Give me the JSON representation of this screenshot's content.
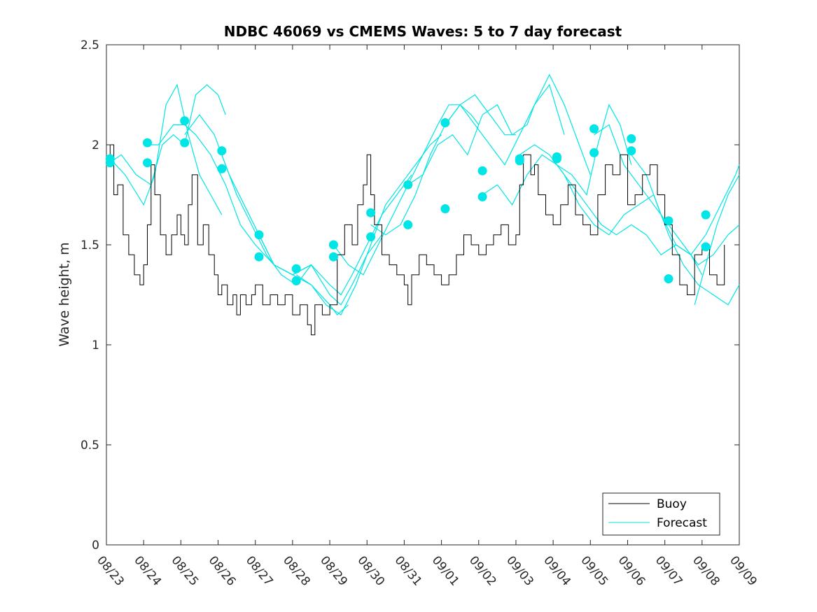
{
  "chart_data": {
    "type": "line",
    "title": "NDBC 46069 vs CMEMS Waves: 5 to 7 day forecast",
    "xlabel": "",
    "ylabel": "Wave height, m",
    "xlim": [
      0,
      17
    ],
    "ylim": [
      0,
      2.5
    ],
    "yticks": [
      0,
      0.5,
      1,
      1.5,
      2,
      2.5
    ],
    "ytick_labels": [
      "0",
      "0.5",
      "1",
      "1.5",
      "2",
      "2.5"
    ],
    "xtick_labels": [
      "08/23",
      "08/24",
      "08/25",
      "08/26",
      "08/27",
      "08/28",
      "08/29",
      "08/30",
      "08/31",
      "09/01",
      "09/02",
      "09/03",
      "09/04",
      "09/05",
      "09/06",
      "09/07",
      "09/08",
      "09/09"
    ],
    "grid": false,
    "legend_position": "bottom-right",
    "legend": [
      {
        "name": "Buoy",
        "color": "#000000"
      },
      {
        "name": "Forecast",
        "color": "#00e5e5"
      }
    ],
    "buoy": {
      "name": "Buoy",
      "color": "#000000",
      "x": [
        0,
        0.1,
        0.2,
        0.3,
        0.45,
        0.6,
        0.75,
        0.9,
        1.0,
        1.1,
        1.2,
        1.3,
        1.45,
        1.6,
        1.75,
        1.9,
        2.0,
        2.1,
        2.2,
        2.3,
        2.45,
        2.6,
        2.75,
        2.9,
        3.0,
        3.1,
        3.25,
        3.4,
        3.5,
        3.6,
        3.75,
        3.9,
        4.0,
        4.2,
        4.4,
        4.6,
        4.8,
        5.0,
        5.2,
        5.4,
        5.5,
        5.6,
        5.8,
        6.0,
        6.2,
        6.4,
        6.6,
        6.75,
        6.9,
        7.0,
        7.1,
        7.2,
        7.4,
        7.6,
        7.8,
        8.0,
        8.1,
        8.2,
        8.4,
        8.6,
        8.8,
        9.0,
        9.2,
        9.4,
        9.6,
        9.8,
        10.0,
        10.2,
        10.4,
        10.6,
        10.8,
        11.0,
        11.1,
        11.2,
        11.4,
        11.5,
        11.6,
        11.8,
        12.0,
        12.2,
        12.4,
        12.6,
        12.8,
        13.0,
        13.2,
        13.4,
        13.6,
        13.8,
        14.0,
        14.2,
        14.4,
        14.6,
        14.8,
        15.0,
        15.2,
        15.4,
        15.6,
        15.8,
        16.0,
        16.2,
        16.4,
        16.6
      ],
      "values": [
        1.9,
        2.0,
        1.75,
        1.8,
        1.55,
        1.45,
        1.35,
        1.3,
        1.4,
        1.6,
        1.9,
        1.75,
        1.55,
        1.45,
        1.55,
        1.65,
        1.55,
        1.5,
        1.7,
        1.85,
        1.5,
        1.6,
        1.45,
        1.35,
        1.25,
        1.3,
        1.2,
        1.25,
        1.15,
        1.25,
        1.2,
        1.25,
        1.3,
        1.2,
        1.25,
        1.2,
        1.25,
        1.15,
        1.2,
        1.1,
        1.05,
        1.2,
        1.15,
        1.2,
        1.45,
        1.6,
        1.5,
        1.7,
        1.8,
        1.95,
        1.75,
        1.6,
        1.45,
        1.4,
        1.35,
        1.3,
        1.2,
        1.35,
        1.45,
        1.4,
        1.35,
        1.3,
        1.35,
        1.45,
        1.55,
        1.5,
        1.45,
        1.5,
        1.55,
        1.6,
        1.5,
        1.55,
        1.8,
        1.95,
        1.85,
        1.9,
        1.75,
        1.65,
        1.6,
        1.7,
        1.8,
        1.65,
        1.6,
        1.55,
        1.75,
        1.9,
        1.85,
        1.95,
        1.7,
        1.75,
        1.85,
        1.9,
        1.75,
        1.6,
        1.45,
        1.3,
        1.25,
        1.45,
        1.5,
        1.35,
        1.3,
        1.5
      ]
    },
    "forecasts": [
      {
        "x": [
          0,
          0.5,
          1.0,
          1.3,
          1.6,
          1.9,
          2.2,
          2.5,
          2.8,
          3.1
        ],
        "values": [
          1.95,
          1.85,
          1.7,
          1.85,
          2.2,
          2.3,
          2.05,
          1.85,
          1.75,
          1.65
        ]
      },
      {
        "x": [
          0,
          0.4,
          0.8,
          1.2,
          1.5,
          1.8,
          2.1,
          2.4,
          2.7,
          3.0,
          3.2
        ],
        "values": [
          1.9,
          1.95,
          1.85,
          1.8,
          2.0,
          2.05,
          2.0,
          2.25,
          2.3,
          2.25,
          2.15
        ]
      },
      {
        "x": [
          1.0,
          1.4,
          1.8,
          2.1,
          2.4,
          2.8,
          3.2,
          3.6,
          4.0,
          4.5,
          5.0,
          5.5
        ],
        "values": [
          2.0,
          2.0,
          2.1,
          2.1,
          2.05,
          1.95,
          1.8,
          1.6,
          1.5,
          1.4,
          1.35,
          1.4
        ]
      },
      {
        "x": [
          2.1,
          2.5,
          2.9,
          3.3,
          3.7,
          4.1,
          4.5,
          5.0,
          5.5,
          6.0,
          6.2,
          6.5
        ],
        "values": [
          2.05,
          2.15,
          2.05,
          1.85,
          1.7,
          1.55,
          1.4,
          1.35,
          1.3,
          1.2,
          1.15,
          1.2
        ]
      },
      {
        "x": [
          3.1,
          3.5,
          3.9,
          4.3,
          4.7,
          5.1,
          5.5,
          6.0,
          6.3,
          6.6,
          7.0,
          7.4
        ],
        "values": [
          1.95,
          1.75,
          1.6,
          1.45,
          1.35,
          1.3,
          1.4,
          1.25,
          1.2,
          1.3,
          1.45,
          1.55
        ]
      },
      {
        "x": [
          4.1,
          4.5,
          5.0,
          5.5,
          6.0,
          6.3,
          6.6,
          7.0,
          7.4,
          7.8,
          8.2
        ],
        "values": [
          1.55,
          1.4,
          1.35,
          1.4,
          1.3,
          1.25,
          1.35,
          1.5,
          1.65,
          1.75,
          1.85
        ]
      },
      {
        "x": [
          5.1,
          5.5,
          5.9,
          6.3,
          6.7,
          7.1,
          7.5,
          7.9,
          8.3,
          8.7,
          9.0
        ],
        "values": [
          1.35,
          1.3,
          1.2,
          1.15,
          1.3,
          1.5,
          1.7,
          1.8,
          1.9,
          2.0,
          2.05
        ]
      },
      {
        "x": [
          6.1,
          6.5,
          6.9,
          7.3,
          7.7,
          8.1,
          8.5,
          8.9,
          9.2,
          9.5,
          9.8,
          10.0
        ],
        "values": [
          1.5,
          1.4,
          1.35,
          1.5,
          1.65,
          1.8,
          1.95,
          2.1,
          2.2,
          2.2,
          2.15,
          2.1
        ]
      },
      {
        "x": [
          7.1,
          7.5,
          7.9,
          8.3,
          8.7,
          9.1,
          9.5,
          9.9,
          10.3,
          10.7,
          11.0
        ],
        "values": [
          1.6,
          1.55,
          1.6,
          1.75,
          1.95,
          2.1,
          2.2,
          2.25,
          2.15,
          2.05,
          2.05
        ]
      },
      {
        "x": [
          8.1,
          8.5,
          8.9,
          9.3,
          9.7,
          10.1,
          10.5,
          10.9,
          11.3,
          11.5,
          11.9,
          12.3
        ],
        "values": [
          1.8,
          1.85,
          2.0,
          2.05,
          1.95,
          2.15,
          2.2,
          2.05,
          2.1,
          2.2,
          2.3,
          2.05
        ]
      },
      {
        "x": [
          9.1,
          9.5,
          9.9,
          10.3,
          10.7,
          11.1,
          11.5,
          11.9,
          12.3,
          12.7,
          13.0
        ],
        "values": [
          2.1,
          2.2,
          2.1,
          2.0,
          1.9,
          2.05,
          2.2,
          2.35,
          2.2,
          2.0,
          1.85
        ]
      },
      {
        "x": [
          10.1,
          10.5,
          10.9,
          11.3,
          11.7,
          12.1,
          12.5,
          12.9,
          13.2,
          13.5,
          13.8,
          14.1
        ],
        "values": [
          1.75,
          1.8,
          1.7,
          1.85,
          1.95,
          1.9,
          1.85,
          1.75,
          2.0,
          2.2,
          2.1,
          1.9
        ]
      },
      {
        "x": [
          11.1,
          11.5,
          11.9,
          12.3,
          12.7,
          13.1,
          13.5,
          13.9,
          14.3,
          14.7,
          15.1
        ],
        "values": [
          1.95,
          2.0,
          1.95,
          1.85,
          1.7,
          1.6,
          1.55,
          1.65,
          1.7,
          1.75,
          1.55
        ]
      },
      {
        "x": [
          12.1,
          12.5,
          12.9,
          13.3,
          13.7,
          14.1,
          14.5,
          14.9,
          15.3,
          15.7,
          16.0
        ],
        "values": [
          1.9,
          1.8,
          1.7,
          1.6,
          1.55,
          1.6,
          1.55,
          1.45,
          1.5,
          1.45,
          1.35
        ]
      },
      {
        "x": [
          13.1,
          13.5,
          13.9,
          14.3,
          14.7,
          15.1,
          15.5,
          15.9,
          16.3,
          16.7,
          17.0
        ],
        "values": [
          2.05,
          2.1,
          1.9,
          1.8,
          1.7,
          1.6,
          1.5,
          1.4,
          1.45,
          1.55,
          1.6
        ]
      },
      {
        "x": [
          14.1,
          14.5,
          14.9,
          15.3,
          15.7,
          16.1,
          16.5,
          16.9,
          17.0
        ],
        "values": [
          1.95,
          1.85,
          1.65,
          1.5,
          1.45,
          1.55,
          1.7,
          1.85,
          1.9
        ]
      },
      {
        "x": [
          15.1,
          15.5,
          15.9,
          16.3,
          16.7,
          17.0
        ],
        "values": [
          1.55,
          1.4,
          1.3,
          1.25,
          1.2,
          1.3
        ]
      },
      {
        "x": [
          15.8,
          16.1,
          16.4,
          16.7,
          17.0
        ],
        "values": [
          1.2,
          1.4,
          1.6,
          1.75,
          1.85
        ]
      }
    ],
    "forecast_points": [
      {
        "x": 0.1,
        "y": 1.93
      },
      {
        "x": 0.1,
        "y": 1.91
      },
      {
        "x": 1.1,
        "y": 2.01
      },
      {
        "x": 1.1,
        "y": 1.91
      },
      {
        "x": 2.1,
        "y": 2.12
      },
      {
        "x": 2.1,
        "y": 2.01
      },
      {
        "x": 3.1,
        "y": 1.97
      },
      {
        "x": 3.1,
        "y": 1.88
      },
      {
        "x": 4.1,
        "y": 1.55
      },
      {
        "x": 4.1,
        "y": 1.44
      },
      {
        "x": 5.1,
        "y": 1.38
      },
      {
        "x": 5.1,
        "y": 1.32
      },
      {
        "x": 6.1,
        "y": 1.5
      },
      {
        "x": 6.1,
        "y": 1.44
      },
      {
        "x": 7.1,
        "y": 1.66
      },
      {
        "x": 7.1,
        "y": 1.54
      },
      {
        "x": 8.1,
        "y": 1.8
      },
      {
        "x": 8.1,
        "y": 1.6
      },
      {
        "x": 9.1,
        "y": 2.11
      },
      {
        "x": 9.1,
        "y": 1.68
      },
      {
        "x": 10.1,
        "y": 1.87
      },
      {
        "x": 10.1,
        "y": 1.74
      },
      {
        "x": 11.1,
        "y": 1.93
      },
      {
        "x": 11.1,
        "y": 1.92
      },
      {
        "x": 12.1,
        "y": 1.94
      },
      {
        "x": 12.1,
        "y": 1.93
      },
      {
        "x": 13.1,
        "y": 2.08
      },
      {
        "x": 13.1,
        "y": 1.96
      },
      {
        "x": 14.1,
        "y": 2.03
      },
      {
        "x": 14.1,
        "y": 1.97
      },
      {
        "x": 15.1,
        "y": 1.62
      },
      {
        "x": 15.1,
        "y": 1.33
      },
      {
        "x": 16.1,
        "y": 1.65
      },
      {
        "x": 16.1,
        "y": 1.49
      }
    ]
  },
  "colors": {
    "buoy": "#000000",
    "forecast": "#00e5e5",
    "axis": "#262626",
    "background": "#ffffff"
  }
}
